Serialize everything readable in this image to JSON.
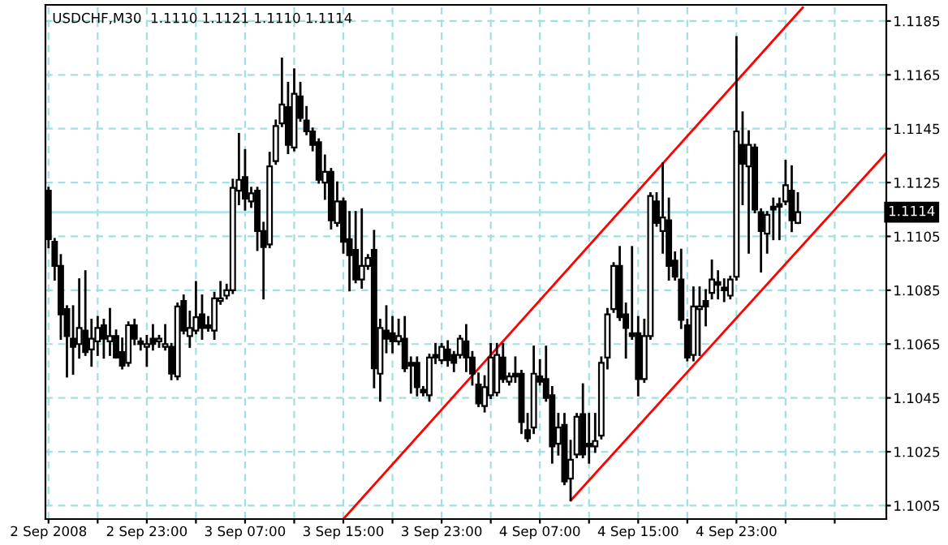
{
  "chart_data": {
    "type": "candlestick",
    "title": "USDCHF,M30  1.1110 1.1121 1.1110 1.1114",
    "x": [
      "2008-09-02T15:00",
      "2008-09-02T15:30",
      "2008-09-02T16:00",
      "2008-09-02T16:30",
      "2008-09-02T17:00",
      "2008-09-02T17:30",
      "2008-09-02T18:00",
      "2008-09-02T18:30",
      "2008-09-02T19:00",
      "2008-09-02T19:30",
      "2008-09-02T20:00",
      "2008-09-02T20:30",
      "2008-09-02T21:00",
      "2008-09-02T21:30",
      "2008-09-02T22:00",
      "2008-09-02T22:30",
      "2008-09-02T23:00",
      "2008-09-02T23:30",
      "2008-09-03T00:00",
      "2008-09-03T00:30",
      "2008-09-03T01:00",
      "2008-09-03T01:30",
      "2008-09-03T02:00",
      "2008-09-03T02:30",
      "2008-09-03T03:00",
      "2008-09-03T03:30",
      "2008-09-03T04:00",
      "2008-09-03T04:30",
      "2008-09-03T05:00",
      "2008-09-03T05:30",
      "2008-09-03T06:00",
      "2008-09-03T06:30",
      "2008-09-03T07:00",
      "2008-09-03T07:30",
      "2008-09-03T08:00",
      "2008-09-03T08:30",
      "2008-09-03T09:00",
      "2008-09-03T09:30",
      "2008-09-03T10:00",
      "2008-09-03T10:30",
      "2008-09-03T11:00",
      "2008-09-03T11:30",
      "2008-09-03T12:00",
      "2008-09-03T12:30",
      "2008-09-03T13:00",
      "2008-09-03T13:30",
      "2008-09-03T14:00",
      "2008-09-03T14:30",
      "2008-09-03T15:00",
      "2008-09-03T15:30",
      "2008-09-03T16:00",
      "2008-09-03T16:30",
      "2008-09-03T17:00",
      "2008-09-03T17:30",
      "2008-09-03T18:00",
      "2008-09-03T18:30",
      "2008-09-03T19:00",
      "2008-09-03T19:30",
      "2008-09-03T20:00",
      "2008-09-03T20:30",
      "2008-09-03T21:00",
      "2008-09-03T21:30",
      "2008-09-03T22:00",
      "2008-09-03T22:30",
      "2008-09-03T23:00",
      "2008-09-03T23:30",
      "2008-09-04T00:00",
      "2008-09-04T00:30",
      "2008-09-04T01:00",
      "2008-09-04T01:30",
      "2008-09-04T02:00",
      "2008-09-04T02:30",
      "2008-09-04T03:00",
      "2008-09-04T03:30",
      "2008-09-04T04:00",
      "2008-09-04T04:30",
      "2008-09-04T05:00",
      "2008-09-04T05:30",
      "2008-09-04T06:00",
      "2008-09-04T06:30",
      "2008-09-04T07:00",
      "2008-09-04T07:30",
      "2008-09-04T08:00",
      "2008-09-04T08:30",
      "2008-09-04T09:00",
      "2008-09-04T09:30",
      "2008-09-04T10:00",
      "2008-09-04T10:30",
      "2008-09-04T11:00",
      "2008-09-04T11:30",
      "2008-09-04T12:00",
      "2008-09-04T12:30",
      "2008-09-04T13:00",
      "2008-09-04T13:30",
      "2008-09-04T14:00",
      "2008-09-04T14:30",
      "2008-09-04T15:00",
      "2008-09-04T15:30",
      "2008-09-04T16:00",
      "2008-09-04T16:30",
      "2008-09-04T17:00",
      "2008-09-04T17:30",
      "2008-09-04T18:00",
      "2008-09-04T18:30",
      "2008-09-04T19:00",
      "2008-09-04T19:30",
      "2008-09-04T20:00",
      "2008-09-04T20:30",
      "2008-09-04T21:00",
      "2008-09-04T21:30",
      "2008-09-04T22:00",
      "2008-09-04T22:30",
      "2008-09-04T23:00",
      "2008-09-04T23:30",
      "2008-09-05T00:00",
      "2008-09-05T00:30",
      "2008-09-05T01:00",
      "2008-09-05T01:30",
      "2008-09-05T02:00",
      "2008-09-05T02:30",
      "2008-09-05T03:00",
      "2008-09-05T03:30",
      "2008-09-05T04:00"
    ],
    "ohlc": [
      [
        1.1122,
        1.1123,
        1.1101,
        1.1104
      ],
      [
        1.1103,
        1.1104,
        1.1089,
        1.1094
      ],
      [
        1.1094,
        1.1098,
        1.1067,
        1.1076
      ],
      [
        1.1078,
        1.1079,
        1.1053,
        1.1068
      ],
      [
        1.1067,
        1.1079,
        1.1054,
        1.1064
      ],
      [
        1.1065,
        1.1089,
        1.106,
        1.1071
      ],
      [
        1.107,
        1.1092,
        1.1061,
        1.1062
      ],
      [
        1.1063,
        1.1074,
        1.1057,
        1.1067
      ],
      [
        1.1066,
        1.1075,
        1.1061,
        1.1071
      ],
      [
        1.1072,
        1.1074,
        1.106,
        1.1067
      ],
      [
        1.1066,
        1.1078,
        1.1061,
        1.1068
      ],
      [
        1.1068,
        1.107,
        1.106,
        1.106
      ],
      [
        1.1062,
        1.1067,
        1.1056,
        1.1057
      ],
      [
        1.1058,
        1.1073,
        1.1057,
        1.1072
      ],
      [
        1.1072,
        1.1074,
        1.1065,
        1.1067
      ],
      [
        1.1066,
        1.1067,
        1.1063,
        1.1065
      ],
      [
        1.1064,
        1.1068,
        1.1057,
        1.1065
      ],
      [
        1.1067,
        1.1072,
        1.1063,
        1.1065
      ],
      [
        1.1066,
        1.1068,
        1.1064,
        1.1067
      ],
      [
        1.1064,
        1.1072,
        1.1063,
        1.1065
      ],
      [
        1.1064,
        1.1065,
        1.1052,
        1.1054
      ],
      [
        1.1053,
        1.108,
        1.1052,
        1.1079
      ],
      [
        1.1081,
        1.1083,
        1.1069,
        1.107
      ],
      [
        1.1068,
        1.1077,
        1.1064,
        1.1071
      ],
      [
        1.107,
        1.1088,
        1.1069,
        1.1075
      ],
      [
        1.1076,
        1.1083,
        1.1067,
        1.1071
      ],
      [
        1.1072,
        1.1075,
        1.107,
        1.1071
      ],
      [
        1.107,
        1.1084,
        1.1067,
        1.1082
      ],
      [
        1.1081,
        1.1088,
        1.108,
        1.1082
      ],
      [
        1.1083,
        1.1087,
        1.1082,
        1.1085
      ],
      [
        1.1085,
        1.1126,
        1.1084,
        1.1123
      ],
      [
        1.1122,
        1.1143,
        1.1117,
        1.1126
      ],
      [
        1.1127,
        1.1137,
        1.1115,
        1.1119
      ],
      [
        1.1118,
        1.1123,
        1.1116,
        1.1121
      ],
      [
        1.1122,
        1.1123,
        1.11,
        1.1107
      ],
      [
        1.1107,
        1.111,
        1.1082,
        1.1101
      ],
      [
        1.1102,
        1.1136,
        1.1101,
        1.1131
      ],
      [
        1.1133,
        1.1148,
        1.1132,
        1.1146
      ],
      [
        1.1147,
        1.1171,
        1.1146,
        1.1154
      ],
      [
        1.1153,
        1.1162,
        1.1136,
        1.1139
      ],
      [
        1.1138,
        1.1167,
        1.1137,
        1.1158
      ],
      [
        1.1157,
        1.1162,
        1.1148,
        1.1149
      ],
      [
        1.1148,
        1.1153,
        1.1143,
        1.1144
      ],
      [
        1.1144,
        1.1145,
        1.1137,
        1.1139
      ],
      [
        1.114,
        1.1141,
        1.1125,
        1.1126
      ],
      [
        1.1125,
        1.1135,
        1.1119,
        1.1129
      ],
      [
        1.1129,
        1.113,
        1.1108,
        1.1111
      ],
      [
        1.111,
        1.1125,
        1.1109,
        1.1118
      ],
      [
        1.1118,
        1.1119,
        1.1099,
        1.1103
      ],
      [
        1.1104,
        1.1114,
        1.1085,
        1.1098
      ],
      [
        1.11,
        1.1114,
        1.1088,
        1.1089
      ],
      [
        1.1089,
        1.1115,
        1.1086,
        1.1094
      ],
      [
        1.1094,
        1.1098,
        1.1093,
        1.1097
      ],
      [
        1.11,
        1.1107,
        1.1049,
        1.1056
      ],
      [
        1.1054,
        1.1074,
        1.1044,
        1.1071
      ],
      [
        1.107,
        1.1079,
        1.1062,
        1.1067
      ],
      [
        1.1069,
        1.1075,
        1.1062,
        1.1066
      ],
      [
        1.1066,
        1.1074,
        1.1065,
        1.1068
      ],
      [
        1.1067,
        1.1075,
        1.1055,
        1.1056
      ],
      [
        1.1058,
        1.106,
        1.1047,
        1.1057
      ],
      [
        1.1058,
        1.106,
        1.1046,
        1.1049
      ],
      [
        1.1048,
        1.1049,
        1.1046,
        1.1047
      ],
      [
        1.1046,
        1.1061,
        1.1044,
        1.106
      ],
      [
        1.1061,
        1.1065,
        1.1058,
        1.106
      ],
      [
        1.1059,
        1.1065,
        1.1058,
        1.1064
      ],
      [
        1.1063,
        1.1066,
        1.1057,
        1.1059
      ],
      [
        1.1061,
        1.1062,
        1.1055,
        1.1058
      ],
      [
        1.1061,
        1.1068,
        1.106,
        1.1067
      ],
      [
        1.1066,
        1.1072,
        1.1055,
        1.106
      ],
      [
        1.106,
        1.1062,
        1.105,
        1.1054
      ],
      [
        1.105,
        1.1054,
        1.1042,
        1.1043
      ],
      [
        1.1042,
        1.1053,
        1.104,
        1.1049
      ],
      [
        1.1046,
        1.1065,
        1.1045,
        1.106
      ],
      [
        1.1047,
        1.1065,
        1.1046,
        1.1061
      ],
      [
        1.106,
        1.1065,
        1.1051,
        1.1052
      ],
      [
        1.1051,
        1.1054,
        1.105,
        1.1053
      ],
      [
        1.1054,
        1.106,
        1.1051,
        1.1053
      ],
      [
        1.1054,
        1.1055,
        1.1032,
        1.1036
      ],
      [
        1.1033,
        1.1039,
        1.1029,
        1.103
      ],
      [
        1.1034,
        1.1064,
        1.1032,
        1.1054
      ],
      [
        1.1053,
        1.1059,
        1.105,
        1.1051
      ],
      [
        1.1052,
        1.1064,
        1.1044,
        1.1045
      ],
      [
        1.1046,
        1.1049,
        1.1021,
        1.1027
      ],
      [
        1.1028,
        1.1039,
        1.1024,
        1.1034
      ],
      [
        1.1035,
        1.1039,
        1.1013,
        1.1014
      ],
      [
        1.1015,
        1.1029,
        1.1007,
        1.1022
      ],
      [
        1.1024,
        1.1039,
        1.1023,
        1.1038
      ],
      [
        1.1039,
        1.105,
        1.1023,
        1.1024
      ],
      [
        1.1028,
        1.1039,
        1.1021,
        1.1027
      ],
      [
        1.1027,
        1.1039,
        1.1025,
        1.1029
      ],
      [
        1.1031,
        1.106,
        1.103,
        1.1058
      ],
      [
        1.106,
        1.1078,
        1.1056,
        1.1076
      ],
      [
        1.1078,
        1.1095,
        1.1077,
        1.1094
      ],
      [
        1.1094,
        1.1101,
        1.1074,
        1.1075
      ],
      [
        1.1076,
        1.108,
        1.106,
        1.1071
      ],
      [
        1.1069,
        1.1101,
        1.1067,
        1.1068
      ],
      [
        1.1069,
        1.1075,
        1.1046,
        1.1052
      ],
      [
        1.1052,
        1.1074,
        1.1051,
        1.1068
      ],
      [
        1.1068,
        1.1121,
        1.1067,
        1.112
      ],
      [
        1.1118,
        1.1121,
        1.1109,
        1.111
      ],
      [
        1.1107,
        1.1132,
        1.1099,
        1.1112
      ],
      [
        1.1111,
        1.1119,
        1.1089,
        1.1094
      ],
      [
        1.1096,
        1.1099,
        1.1089,
        1.109
      ],
      [
        1.1089,
        1.11,
        1.1071,
        1.1074
      ],
      [
        1.1072,
        1.1074,
        1.1059,
        1.106
      ],
      [
        1.1061,
        1.1086,
        1.1059,
        1.1079
      ],
      [
        1.1078,
        1.1086,
        1.1061,
        1.1079
      ],
      [
        1.1081,
        1.1085,
        1.1072,
        1.1079
      ],
      [
        1.1084,
        1.1096,
        1.1082,
        1.1089
      ],
      [
        1.1088,
        1.1092,
        1.1082,
        1.1087
      ],
      [
        1.1086,
        1.1089,
        1.1081,
        1.1085
      ],
      [
        1.1083,
        1.109,
        1.1082,
        1.1089
      ],
      [
        1.109,
        1.1179,
        1.1089,
        1.1144
      ],
      [
        1.1139,
        1.1151,
        1.1117,
        1.1132
      ],
      [
        1.1131,
        1.1144,
        1.1099,
        1.1139
      ],
      [
        1.1138,
        1.1139,
        1.1114,
        1.1115
      ],
      [
        1.1114,
        1.1115,
        1.1092,
        1.1107
      ],
      [
        1.1106,
        1.1114,
        1.1099,
        1.1113
      ],
      [
        1.1116,
        1.1119,
        1.1104,
        1.1115
      ],
      [
        1.1117,
        1.1119,
        1.1104,
        1.1116
      ],
      [
        1.1118,
        1.1133,
        1.1117,
        1.1124
      ],
      [
        1.1122,
        1.1131,
        1.1107,
        1.1111
      ],
      [
        1.111,
        1.1121,
        1.111,
        1.1114
      ]
    ],
    "series": [
      {
        "type": "line",
        "x": [
          "2008-09-03T15:00",
          "2008-09-05T04:24"
        ],
        "values": [
          1.1,
          1.119
        ],
        "color": "#ff0000"
      },
      {
        "type": "line",
        "x": [
          "2008-09-04T09:32",
          "2008-09-05T11:12"
        ],
        "values": [
          1.1007,
          1.1136
        ],
        "color": "#ff0000"
      }
    ],
    "xlim": [
      "2008-09-02T14:45",
      "2008-09-05T11:12"
    ],
    "xticks": [
      {
        "value": "2008-09-02T15:00",
        "label": "2 Sep 2008"
      },
      {
        "value": "2008-09-02T19:00",
        "label": null
      },
      {
        "value": "2008-09-02T23:00",
        "label": "2 Sep 23:00"
      },
      {
        "value": "2008-09-03T03:00",
        "label": null
      },
      {
        "value": "2008-09-03T07:00",
        "label": "3 Sep 07:00"
      },
      {
        "value": "2008-09-03T11:00",
        "label": null
      },
      {
        "value": "2008-09-03T15:00",
        "label": "3 Sep 15:00"
      },
      {
        "value": "2008-09-03T19:00",
        "label": null
      },
      {
        "value": "2008-09-03T23:00",
        "label": "3 Sep 23:00"
      },
      {
        "value": "2008-09-04T03:00",
        "label": null
      },
      {
        "value": "2008-09-04T07:00",
        "label": "4 Sep 07:00"
      },
      {
        "value": "2008-09-04T11:00",
        "label": null
      },
      {
        "value": "2008-09-04T15:00",
        "label": "4 Sep 15:00"
      },
      {
        "value": "2008-09-04T19:00",
        "label": null
      },
      {
        "value": "2008-09-04T23:00",
        "label": "4 Sep 23:00"
      },
      {
        "value": "2008-09-05T03:00",
        "label": null
      },
      {
        "value": "2008-09-05T07:00",
        "label": null
      }
    ],
    "ylim": [
      1.1,
      1.1191
    ],
    "yticks": [
      1.1005,
      1.1025,
      1.1045,
      1.1065,
      1.1085,
      1.1105,
      1.1125,
      1.1145,
      1.1165,
      1.1185
    ],
    "ref_lines": [
      {
        "axis": "y",
        "value": 1.1114,
        "label": "1.1114",
        "color": "#b0e6e6",
        "line_style": "solid"
      }
    ],
    "grid": true,
    "line_style": "solid"
  }
}
